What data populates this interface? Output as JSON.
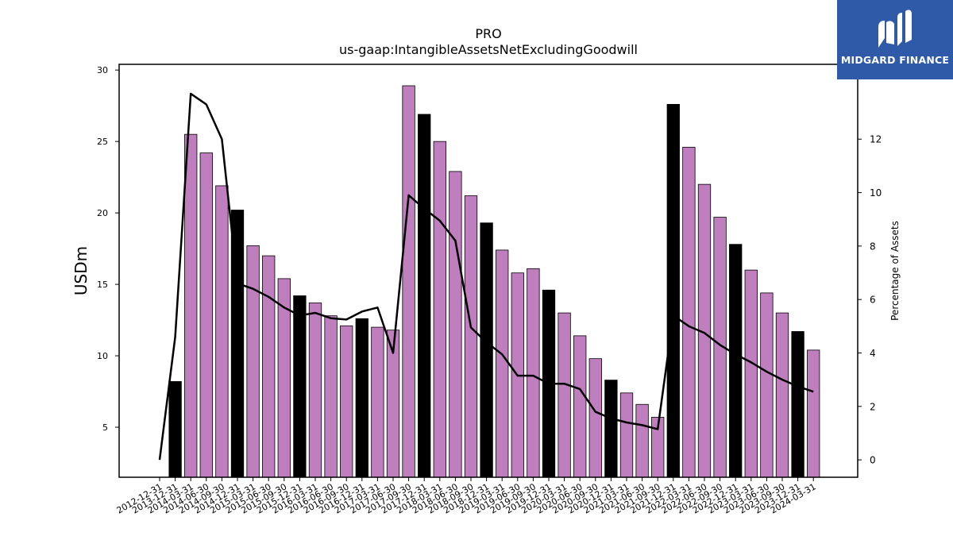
{
  "chart_data": {
    "type": "bar",
    "title": "PRO",
    "subtitle": "us-gaap:IntangibleAssetsNetExcludingGoodwill",
    "ylabel": "USDm",
    "y2label": "Percentage of Assets",
    "ylim": [
      1.5,
      30.4
    ],
    "y2lim": [
      -0.65,
      14.8
    ],
    "yticks": [
      5,
      10,
      15,
      20,
      25,
      30
    ],
    "y2ticks": [
      0,
      2,
      4,
      6,
      8,
      10,
      12
    ],
    "categories": [
      "2012-12-31",
      "2013-12-31",
      "2014-03-31",
      "2014-06-30",
      "2014-09-30",
      "2014-12-31",
      "2015-03-31",
      "2015-06-30",
      "2015-09-30",
      "2015-12-31",
      "2016-03-31",
      "2016-06-30",
      "2016-09-30",
      "2016-12-31",
      "2017-03-31",
      "2017-06-30",
      "2017-09-30",
      "2017-12-31",
      "2018-03-31",
      "2018-06-30",
      "2018-09-30",
      "2018-12-31",
      "2019-03-31",
      "2019-06-30",
      "2019-09-30",
      "2019-12-31",
      "2020-03-31",
      "2020-06-30",
      "2020-09-30",
      "2020-12-31",
      "2021-03-31",
      "2021-06-30",
      "2021-09-30",
      "2021-12-31",
      "2022-03-31",
      "2022-06-30",
      "2022-09-30",
      "2022-12-31",
      "2023-03-31",
      "2023-06-30",
      "2023-09-30",
      "2023-12-31",
      "2024-03-31"
    ],
    "series": [
      {
        "type": "bar",
        "values": [
          null,
          8.2,
          25.5,
          24.2,
          21.9,
          20.2,
          17.7,
          17.0,
          15.4,
          14.2,
          13.7,
          12.8,
          12.1,
          12.6,
          12.0,
          11.8,
          28.9,
          26.9,
          25.0,
          22.9,
          21.2,
          19.3,
          17.4,
          15.8,
          16.1,
          14.6,
          13.0,
          11.4,
          9.8,
          8.3,
          7.4,
          6.6,
          5.7,
          27.6,
          24.6,
          22.0,
          19.7,
          17.8,
          16.0,
          14.4,
          13.0,
          11.7,
          10.4
        ]
      },
      {
        "type": "line",
        "axis": "right",
        "values": [
          0.0,
          4.6,
          13.7,
          13.3,
          12.0,
          6.6,
          6.4,
          6.1,
          5.7,
          5.4,
          5.5,
          5.3,
          5.25,
          5.55,
          5.7,
          4.0,
          9.9,
          9.4,
          8.95,
          8.2,
          4.95,
          4.4,
          3.95,
          3.15,
          3.15,
          2.85,
          2.85,
          2.65,
          1.8,
          1.55,
          1.4,
          1.3,
          1.15,
          5.4,
          5.0,
          4.75,
          4.3,
          3.95,
          3.65,
          3.3,
          3.0,
          2.75,
          2.55
        ]
      }
    ],
    "highlight_color": "#000000",
    "bar_color": "#bf7fbf",
    "line_color": "#000000"
  },
  "logo": {
    "text": "MIDGARD FINANCE",
    "bg_color": "#2f5aa8"
  }
}
